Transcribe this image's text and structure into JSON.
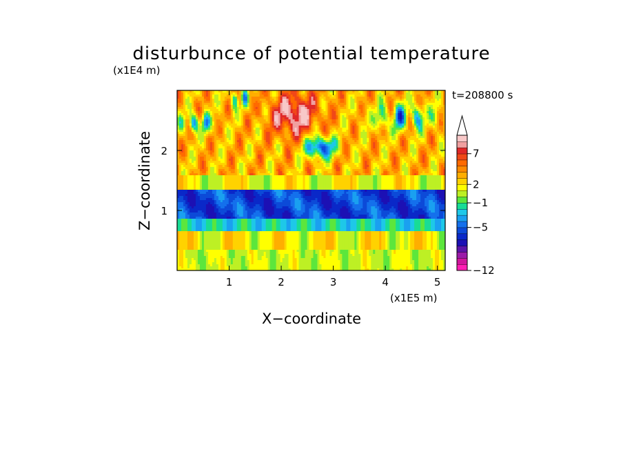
{
  "chart_data": {
    "type": "heatmap",
    "title": "disturbunce of potential temperature",
    "time_label": "t=208800 s",
    "x_axis": {
      "label": "X−coordinate",
      "scale_note": "(x1E5 m)",
      "range": [
        0,
        5.15
      ],
      "ticks": [
        1,
        2,
        3,
        4,
        5
      ],
      "tick_labels": [
        "1",
        "2",
        "3",
        "4",
        "5"
      ]
    },
    "y_axis": {
      "label": "Z−coordinate",
      "scale_note": "(x1E4 m)",
      "range": [
        0,
        3.0
      ],
      "ticks": [
        1,
        2
      ],
      "tick_labels": [
        "1",
        "2"
      ]
    },
    "colorbar": {
      "levels": [
        -12,
        -11,
        -10,
        -9,
        -8,
        -7,
        -6,
        -5,
        -4,
        -3,
        -2,
        -1,
        0,
        1,
        2,
        3,
        4,
        5,
        6,
        7,
        8,
        9
      ],
      "colors": [
        "#ff1fb4",
        "#d0169c",
        "#9b1aa8",
        "#5c14a8",
        "#1c10b4",
        "#0a28c8",
        "#0c4ad8",
        "#1470ec",
        "#1aa0f0",
        "#1ec8e8",
        "#18dc96",
        "#5ce63c",
        "#bdf024",
        "#ffff00",
        "#ffd200",
        "#ffae00",
        "#ff8a00",
        "#ff6a00",
        "#f04818",
        "#e02828",
        "#f0a0a0",
        "#f8c8c8"
      ],
      "tick_values": [
        -12,
        -5,
        -1,
        2,
        7
      ],
      "tick_labels": [
        "−12",
        "−5",
        "−1",
        "2",
        "7"
      ],
      "extend": "max"
    },
    "field_description_bands": [
      {
        "z_range": [
          0.0,
          0.35
        ],
        "value": 0
      },
      {
        "z_range": [
          0.35,
          0.65
        ],
        "value": 1
      },
      {
        "z_range": [
          0.65,
          0.85
        ],
        "value": -3
      },
      {
        "z_range": [
          0.85,
          1.35
        ],
        "value": -6
      },
      {
        "z_range": [
          1.35,
          1.6
        ],
        "value": 1
      },
      {
        "z_range": [
          1.6,
          3.0
        ],
        "value": 3
      }
    ]
  }
}
